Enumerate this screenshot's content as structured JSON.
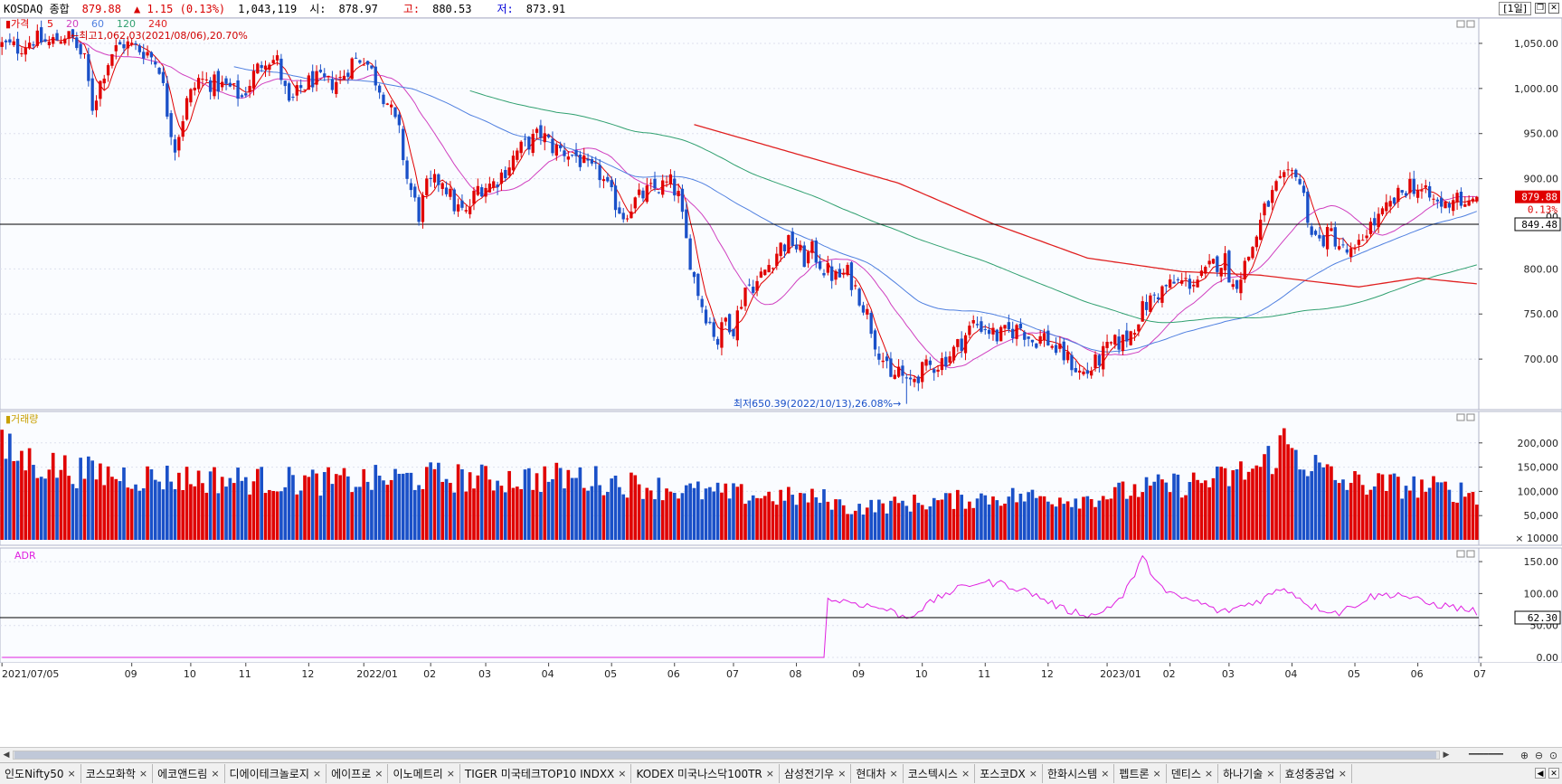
{
  "header": {
    "index_name": "KOSDAQ 종합",
    "price": "879.88",
    "change": "▲ 1.15 (0.13%)",
    "volume": "1,043,119",
    "open_label": "시:",
    "open": "878.97",
    "high_label": "고:",
    "high": "880.53",
    "low_label": "저:",
    "low": "873.91",
    "period": "[1일]"
  },
  "colors": {
    "up": "#e00000",
    "down": "#1a50c8",
    "ma5": "#e00000",
    "ma20": "#d040c0",
    "ma60": "#5080e0",
    "ma120": "#30a070",
    "ma240": "#e02020",
    "adr": "#e020e0",
    "grid": "#dde0ee",
    "panel_bg": "#fafcff"
  },
  "price_panel": {
    "legend_prefix": "가격",
    "legend_ma": [
      "5",
      "20",
      "60",
      "120",
      "240"
    ],
    "max_annotation": "최고1,062.03(2021/08/06),20.70%",
    "min_annotation": "최저650.39(2022/10/13),26.08%",
    "hline_label": "849.48",
    "current_label": "879.88",
    "current_pct": "0.13%",
    "y_labels": [
      "1,050.00",
      "1,000.00",
      "950.00",
      "900.00",
      "800.00",
      "750.00",
      "700.00"
    ],
    "partial_label": "00"
  },
  "volume_panel": {
    "legend": "거래량",
    "y_labels": [
      "200,000",
      "150,000",
      "100,000",
      "50,000"
    ],
    "unit": "× 10000"
  },
  "adr_panel": {
    "legend": "ADR",
    "hline_label": "62.30",
    "y_labels": [
      "150.00",
      "100.00",
      "50.00",
      "0.00"
    ]
  },
  "x_axis": [
    "2021/07/05",
    "09",
    "10",
    "11",
    "12",
    "2022/01",
    "02",
    "03",
    "04",
    "05",
    "06",
    "07",
    "08",
    "09",
    "10",
    "11",
    "12",
    "2023/01",
    "02",
    "03",
    "04",
    "05",
    "06",
    "07"
  ],
  "tabs": [
    "인도Nifty50",
    "코스모화학",
    "에코앤드림",
    "디에이테크놀로지",
    "에이프로",
    "이노메트리",
    "TIGER 미국테크TOP10 INDXX",
    "KODEX 미국나스닥100TR",
    "삼성전기우",
    "현대차",
    "코스텍시스",
    "포스코DX",
    "한화시스템",
    "펩트론",
    "덴티스",
    "하나기술",
    "효성중공업"
  ],
  "chart_data": [
    {
      "type": "candlestick",
      "title": "KOSDAQ 종합",
      "series": [
        {
          "name": "가격",
          "anchors": [
            [
              0,
              1048
            ],
            [
              4,
              1045
            ],
            [
              8,
              1055
            ],
            [
              12,
              1050
            ],
            [
              14,
              1055
            ],
            [
              16,
              1060
            ],
            [
              18,
              1054
            ],
            [
              21,
              1030
            ],
            [
              23,
              980
            ],
            [
              26,
              1020
            ],
            [
              28,
              1040
            ],
            [
              31,
              1050
            ],
            [
              34,
              1045
            ],
            [
              37,
              1040
            ],
            [
              40,
              1025
            ],
            [
              42,
              975
            ],
            [
              44,
              935
            ],
            [
              47,
              985
            ],
            [
              50,
              1010
            ],
            [
              54,
              1005
            ],
            [
              58,
              1000
            ],
            [
              61,
              990
            ],
            [
              64,
              1015
            ],
            [
              67,
              1035
            ],
            [
              70,
              1030
            ],
            [
              73,
              980
            ],
            [
              76,
              1000
            ],
            [
              79,
              1010
            ],
            [
              83,
              1005
            ],
            [
              86,
              1010
            ],
            [
              89,
              1030
            ],
            [
              92,
              1035
            ],
            [
              95,
              1010
            ],
            [
              98,
              985
            ],
            [
              101,
              950
            ],
            [
              103,
              900
            ],
            [
              106,
              860
            ],
            [
              108,
              890
            ],
            [
              112,
              900
            ],
            [
              115,
              870
            ],
            [
              118,
              860
            ],
            [
              121,
              890
            ],
            [
              125,
              895
            ],
            [
              128,
              910
            ],
            [
              131,
              930
            ],
            [
              134,
              940
            ],
            [
              137,
              950
            ],
            [
              140,
              935
            ],
            [
              143,
              930
            ],
            [
              146,
              925
            ],
            [
              149,
              910
            ],
            [
              152,
              905
            ],
            [
              155,
              880
            ],
            [
              158,
              860
            ],
            [
              161,
              875
            ],
            [
              164,
              885
            ],
            [
              167,
              890
            ],
            [
              170,
              895
            ],
            [
              172,
              880
            ],
            [
              174,
              830
            ],
            [
              176,
              790
            ],
            [
              178,
              760
            ],
            [
              180,
              740
            ],
            [
              182,
              720
            ],
            [
              184,
              745
            ],
            [
              186,
              735
            ],
            [
              189,
              780
            ],
            [
              192,
              785
            ],
            [
              195,
              805
            ],
            [
              198,
              825
            ],
            [
              201,
              830
            ],
            [
              204,
              810
            ],
            [
              206,
              820
            ],
            [
              209,
              800
            ],
            [
              212,
              790
            ],
            [
              215,
              795
            ],
            [
              218,
              770
            ],
            [
              220,
              750
            ],
            [
              222,
              720
            ],
            [
              224,
              700
            ],
            [
              226,
              675
            ],
            [
              228,
              690
            ],
            [
              230,
              670
            ],
            [
              232,
              680
            ],
            [
              235,
              690
            ],
            [
              238,
              695
            ],
            [
              241,
              705
            ],
            [
              244,
              720
            ],
            [
              247,
              740
            ],
            [
              250,
              735
            ],
            [
              253,
              725
            ],
            [
              256,
              730
            ],
            [
              259,
              735
            ],
            [
              262,
              720
            ],
            [
              265,
              725
            ],
            [
              268,
              710
            ],
            [
              271,
              700
            ],
            [
              274,
              685
            ],
            [
              276,
              685
            ],
            [
              279,
              700
            ],
            [
              282,
              715
            ],
            [
              285,
              720
            ],
            [
              287,
              730
            ],
            [
              290,
              755
            ],
            [
              293,
              770
            ],
            [
              296,
              780
            ],
            [
              299,
              785
            ],
            [
              302,
              785
            ],
            [
              305,
              790
            ],
            [
              308,
              805
            ],
            [
              311,
              810
            ],
            [
              313,
              780
            ],
            [
              315,
              795
            ],
            [
              318,
              825
            ],
            [
              321,
              865
            ],
            [
              324,
              890
            ],
            [
              327,
              900
            ],
            [
              329,
              910
            ],
            [
              331,
              880
            ],
            [
              333,
              840
            ],
            [
              335,
              830
            ],
            [
              338,
              840
            ],
            [
              341,
              820
            ],
            [
              344,
              815
            ],
            [
              347,
              845
            ],
            [
              350,
              855
            ],
            [
              353,
              870
            ],
            [
              356,
              885
            ],
            [
              358,
              895
            ],
            [
              361,
              885
            ],
            [
              364,
              875
            ],
            [
              367,
              870
            ],
            [
              370,
              885
            ],
            [
              372,
              865
            ],
            [
              375,
              880
            ]
          ]
        },
        {
          "name": "5",
          "color": "#e00000"
        },
        {
          "name": "20",
          "color": "#d040c0"
        },
        {
          "name": "60",
          "color": "#5080e0"
        },
        {
          "name": "120",
          "color": "#30a070"
        },
        {
          "name": "240",
          "color": "#e02020",
          "anchors": [
            [
              176,
              960
            ],
            [
              200,
              930
            ],
            [
              228,
              895
            ],
            [
              252,
              850
            ],
            [
              276,
              812
            ],
            [
              300,
              797
            ],
            [
              320,
              793
            ],
            [
              345,
              780
            ],
            [
              360,
              790
            ],
            [
              376,
              783
            ]
          ]
        }
      ],
      "n_bars": 376,
      "ylim": [
        650,
        1070
      ],
      "max_point": {
        "value": 1062.03,
        "date": "2021/08/06"
      },
      "min_point": {
        "value": 650.39,
        "date": "2022/10/13"
      },
      "hline": 849.48,
      "last": 879.88
    },
    {
      "type": "bar",
      "title": "거래량",
      "unit": "× 10000",
      "ylim": [
        0,
        250000
      ],
      "anchors": [
        [
          0,
          185000
        ],
        [
          8,
          160000
        ],
        [
          20,
          140000
        ],
        [
          35,
          130000
        ],
        [
          55,
          125000
        ],
        [
          85,
          120000
        ],
        [
          110,
          130000
        ],
        [
          125,
          125000
        ],
        [
          145,
          130000
        ],
        [
          160,
          115000
        ],
        [
          175,
          100000
        ],
        [
          195,
          90000
        ],
        [
          210,
          85000
        ],
        [
          215,
          65000
        ],
        [
          230,
          75000
        ],
        [
          255,
          90000
        ],
        [
          275,
          85000
        ],
        [
          290,
          105000
        ],
        [
          310,
          125000
        ],
        [
          320,
          150000
        ],
        [
          326,
          200000
        ],
        [
          332,
          160000
        ],
        [
          340,
          120000
        ],
        [
          360,
          110000
        ],
        [
          376,
          95000
        ]
      ]
    },
    {
      "type": "line",
      "title": "ADR",
      "ylim": [
        0,
        160
      ],
      "hline": 62.3,
      "anchors": [
        [
          0,
          0
        ],
        [
          209,
          0
        ],
        [
          210,
          90
        ],
        [
          215,
          88
        ],
        [
          225,
          75
        ],
        [
          230,
          62
        ],
        [
          240,
          100
        ],
        [
          248,
          118
        ],
        [
          255,
          115
        ],
        [
          262,
          100
        ],
        [
          270,
          75
        ],
        [
          278,
          65
        ],
        [
          285,
          95
        ],
        [
          290,
          155
        ],
        [
          296,
          100
        ],
        [
          305,
          85
        ],
        [
          310,
          70
        ],
        [
          320,
          90
        ],
        [
          326,
          110
        ],
        [
          333,
          80
        ],
        [
          340,
          70
        ],
        [
          348,
          95
        ],
        [
          355,
          100
        ],
        [
          362,
          85
        ],
        [
          368,
          80
        ],
        [
          376,
          70
        ]
      ]
    }
  ]
}
